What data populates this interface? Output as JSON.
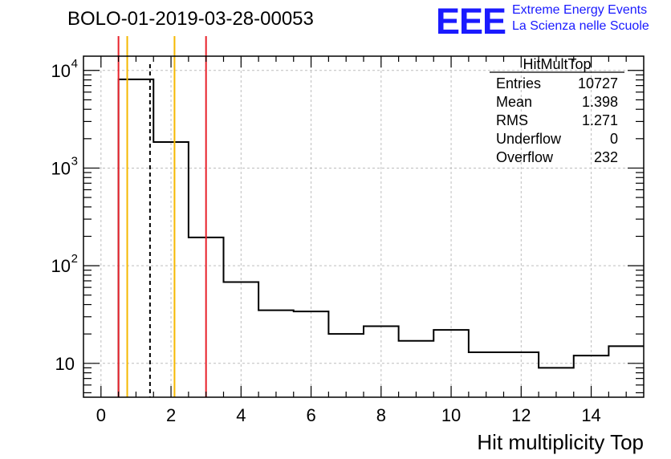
{
  "chart_data": {
    "type": "bar",
    "title": "BOLO-01-2019-03-28-00053",
    "xlabel": "Hit multiplicity Top",
    "ylabel": "",
    "yscale": "log",
    "xlim": [
      -0.5,
      15.5
    ],
    "ylim": [
      4.5,
      14000
    ],
    "grid": true,
    "x_ticks": [
      0,
      2,
      4,
      6,
      8,
      10,
      12,
      14
    ],
    "y_ticks": [
      {
        "value": 10,
        "label": "10",
        "exp": ""
      },
      {
        "value": 100,
        "label": "10",
        "exp": "2"
      },
      {
        "value": 1000,
        "label": "10",
        "exp": "3"
      },
      {
        "value": 10000,
        "label": "10",
        "exp": "4"
      }
    ],
    "bin_edges": [
      0.5,
      1.5,
      2.5,
      3.5,
      4.5,
      5.5,
      6.5,
      7.5,
      8.5,
      9.5,
      10.5,
      11.5,
      12.5,
      13.5,
      14.5,
      15.5
    ],
    "values": [
      8100,
      1850,
      195,
      68,
      35,
      34,
      20,
      24,
      17,
      22,
      13,
      13,
      9,
      12,
      15
    ],
    "vertical_lines": [
      {
        "x": 0.5,
        "color": "#e8222b",
        "style": "solid"
      },
      {
        "x": 0.75,
        "color": "#f5b800",
        "style": "solid"
      },
      {
        "x": 1.4,
        "color": "#000000",
        "style": "dashed"
      },
      {
        "x": 2.1,
        "color": "#f5b800",
        "style": "solid"
      },
      {
        "x": 3.0,
        "color": "#e8222b",
        "style": "solid"
      }
    ],
    "stats_box": {
      "name": "HitMultTop",
      "rows": [
        {
          "label": "Entries",
          "value": "10727"
        },
        {
          "label": "Mean",
          "value": "1.398"
        },
        {
          "label": "RMS",
          "value": "1.271"
        },
        {
          "label": "Underflow",
          "value": "0"
        },
        {
          "label": "Overflow",
          "value": "232"
        }
      ]
    }
  },
  "logo": {
    "mark": "EEE",
    "line1": "Extreme Energy Events",
    "line2": "La Scienza nelle Scuole",
    "color": "#1a1aff"
  }
}
